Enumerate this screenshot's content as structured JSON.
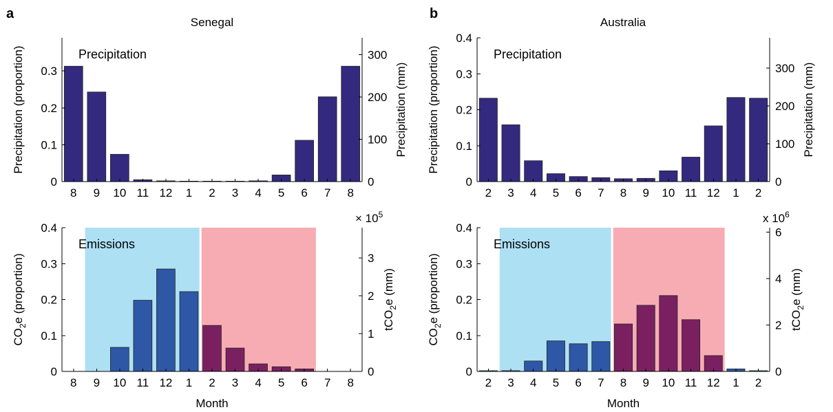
{
  "colors": {
    "precip_bar": "#332a80",
    "emis_bar_wet": "#2e57a6",
    "emis_bar_dry": "#7a2060",
    "band_blue": "#aee0f4",
    "band_red": "#f7acb3"
  },
  "chart_data": [
    {
      "panel_label": "a",
      "title": "Senegal",
      "type": "bar",
      "inner_label": "Precipitation",
      "ylabel": "Precipitation (proportion)",
      "ylabel_right": "Precipitation (mm)",
      "ylim": [
        0,
        0.39
      ],
      "yticks": [
        "0",
        "0.1",
        "0.2",
        "0.3"
      ],
      "ylim_right": [
        0,
        340
      ],
      "yticks_right": [
        "0",
        "100",
        "200",
        "300"
      ],
      "categories": [
        "8",
        "9",
        "10",
        "11",
        "12",
        "1",
        "2",
        "3",
        "4",
        "5",
        "6",
        "7",
        "8"
      ],
      "values": [
        0.313,
        0.243,
        0.074,
        0.005,
        0.002,
        0.001,
        0.001,
        0.001,
        0.002,
        0.018,
        0.112,
        0.23,
        0.313
      ]
    },
    {
      "panel_label": "b",
      "title": "Australia",
      "type": "bar",
      "inner_label": "Precipitation",
      "ylabel": "Precipitation (proportion)",
      "ylabel_right": "Precipitation (mm)",
      "ylim": [
        0,
        0.4
      ],
      "yticks": [
        "0",
        "0.1",
        "0.2",
        "0.3",
        "0.4"
      ],
      "ylim_right": [
        0,
        380
      ],
      "yticks_right": [
        "0",
        "100",
        "200",
        "300"
      ],
      "categories": [
        "2",
        "3",
        "4",
        "5",
        "6",
        "7",
        "8",
        "9",
        "10",
        "11",
        "12",
        "1",
        "2"
      ],
      "values": [
        0.232,
        0.158,
        0.058,
        0.022,
        0.014,
        0.011,
        0.008,
        0.009,
        0.03,
        0.068,
        0.155,
        0.234,
        0.232
      ]
    },
    {
      "type": "bar",
      "inner_label": "Emissions",
      "xlabel": "Month",
      "ylabel": "CO2e (proportion)",
      "ylabel_right": "tCO2e (mm)",
      "multiplier": "× 10",
      "multiplier_exp": "5",
      "ylim": [
        0,
        0.4
      ],
      "yticks": [
        "0",
        "0.1",
        "0.2",
        "0.3",
        "0.4"
      ],
      "ylim_right": [
        0,
        380000
      ],
      "yticks_right": [
        "0",
        "1",
        "2",
        "3"
      ],
      "categories": [
        "8",
        "9",
        "10",
        "11",
        "12",
        "1",
        "2",
        "3",
        "4",
        "5",
        "6",
        "7",
        "8"
      ],
      "values": [
        0,
        0,
        0.067,
        0.198,
        0.285,
        0.222,
        0.128,
        0.065,
        0.021,
        0.013,
        0.007,
        0,
        0
      ],
      "season": [
        "none",
        "none",
        "wet",
        "wet",
        "wet",
        "wet",
        "dry",
        "dry",
        "dry",
        "dry",
        "dry",
        "none",
        "none"
      ],
      "bands": [
        {
          "from": 0.5,
          "to": 5.5,
          "color": "band_blue"
        },
        {
          "from": 5.5,
          "to": 10.5,
          "color": "band_red"
        }
      ]
    },
    {
      "type": "bar",
      "inner_label": "Emissions",
      "xlabel": "Month",
      "ylabel": "CO2e (proportion)",
      "ylabel_right": "tCO2e (mm)",
      "multiplier": "x 10",
      "multiplier_exp": "6",
      "ylim": [
        0,
        0.4
      ],
      "yticks": [
        "0",
        "0.1",
        "0.2",
        "0.3",
        "0.4"
      ],
      "ylim_right": [
        0,
        6200000
      ],
      "yticks_right": [
        "0",
        "2",
        "4",
        "6"
      ],
      "categories": [
        "2",
        "3",
        "4",
        "5",
        "6",
        "7",
        "8",
        "9",
        "10",
        "11",
        "12",
        "1",
        "2"
      ],
      "values": [
        0.002,
        0.002,
        0.029,
        0.085,
        0.077,
        0.083,
        0.132,
        0.184,
        0.211,
        0.144,
        0.044,
        0.007,
        0.002
      ],
      "season": [
        "none",
        "wet",
        "wet",
        "wet",
        "wet",
        "wet",
        "dry",
        "dry",
        "dry",
        "dry",
        "dry",
        "none",
        "none"
      ],
      "bands": [
        {
          "from": 0.5,
          "to": 5.5,
          "color": "band_blue"
        },
        {
          "from": 5.5,
          "to": 10.5,
          "color": "band_red"
        }
      ]
    }
  ]
}
